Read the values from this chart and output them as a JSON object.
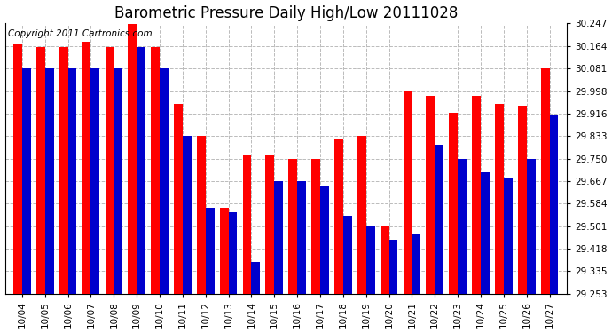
{
  "title": "Barometric Pressure Daily High/Low 20111028",
  "copyright": "Copyright 2011 Cartronics.com",
  "categories": [
    "10/04",
    "10/05",
    "10/06",
    "10/07",
    "10/08",
    "10/09",
    "10/10",
    "10/11",
    "10/12",
    "10/13",
    "10/14",
    "10/15",
    "10/16",
    "10/17",
    "10/18",
    "10/19",
    "10/20",
    "10/21",
    "10/22",
    "10/23",
    "10/24",
    "10/25",
    "10/26",
    "10/27"
  ],
  "highs": [
    30.17,
    30.16,
    30.16,
    30.18,
    30.16,
    30.247,
    30.16,
    29.95,
    29.833,
    29.57,
    29.76,
    29.76,
    29.75,
    29.75,
    29.82,
    29.833,
    29.5,
    30.0,
    29.98,
    29.92,
    29.98,
    29.95,
    29.945,
    30.081
  ],
  "lows": [
    30.081,
    30.081,
    30.081,
    30.081,
    30.081,
    30.16,
    30.081,
    29.833,
    29.57,
    29.553,
    29.37,
    29.667,
    29.667,
    29.65,
    29.54,
    29.5,
    29.45,
    29.47,
    29.8,
    29.75,
    29.7,
    29.68,
    29.75,
    29.91
  ],
  "high_color": "#ff0000",
  "low_color": "#0000cc",
  "background_color": "#ffffff",
  "grid_color": "#bbbbbb",
  "ymin": 29.253,
  "ymax": 30.247,
  "ytick_values": [
    29.253,
    29.335,
    29.418,
    29.501,
    29.584,
    29.667,
    29.75,
    29.833,
    29.916,
    29.998,
    30.081,
    30.164,
    30.247
  ],
  "title_fontsize": 12,
  "copyright_fontsize": 7.5,
  "tick_fontsize": 7.5,
  "bar_width": 0.38
}
